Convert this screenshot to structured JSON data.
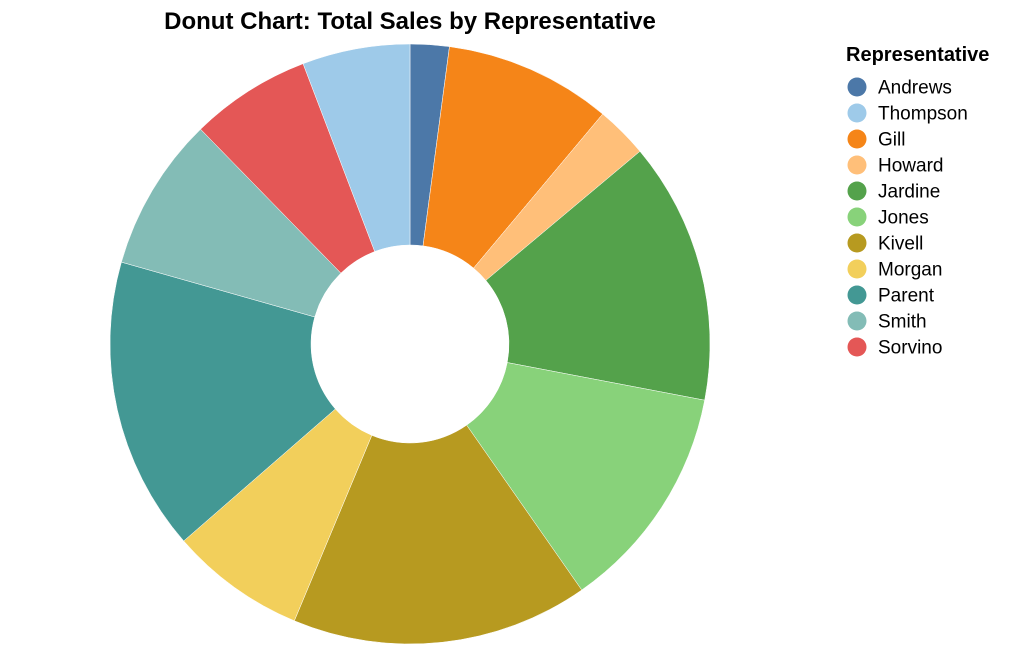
{
  "chart_data": {
    "type": "pie",
    "variant": "donut",
    "title": "Donut Chart: Total Sales by Representative",
    "legend_title": "Representative",
    "legend_placement": "right",
    "categories": [
      "Andrews",
      "Thompson",
      "Gill",
      "Howard",
      "Jardine",
      "Jones",
      "Kivell",
      "Morgan",
      "Parent",
      "Smith",
      "Sorvino"
    ],
    "slice_order": [
      "Andrews",
      "Gill",
      "Howard",
      "Jardine",
      "Jones",
      "Kivell",
      "Morgan",
      "Parent",
      "Smith",
      "Sorvino",
      "Thompson"
    ],
    "values": {
      "Andrews": 2.1,
      "Gill": 9.0,
      "Howard": 2.8,
      "Jardine": 14.1,
      "Jones": 12.3,
      "Kivell": 16.0,
      "Morgan": 7.3,
      "Parent": 15.8,
      "Smith": 8.3,
      "Sorvino": 6.5,
      "Thompson": 5.8
    },
    "colors": {
      "Andrews": "#4c78a8",
      "Thompson": "#9ecae9",
      "Gill": "#f58518",
      "Howard": "#ffbf79",
      "Jardine": "#54a24b",
      "Jones": "#88d27a",
      "Kivell": "#b79a20",
      "Morgan": "#f2cf5b",
      "Parent": "#439894",
      "Smith": "#83bcb6",
      "Sorvino": "#e45756"
    }
  }
}
